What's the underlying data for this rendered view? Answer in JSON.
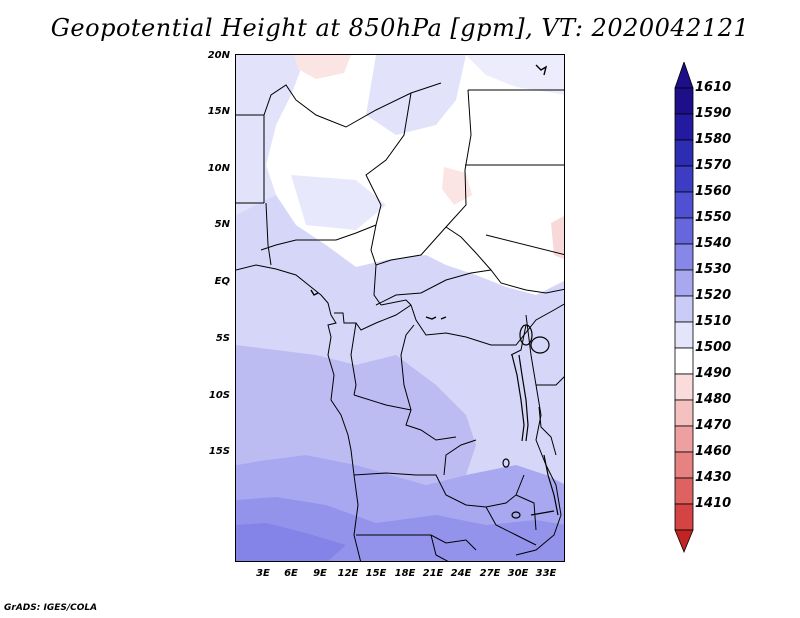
{
  "title": "Geopotential Height at 850hPa [gpm], VT: 2020042121",
  "credit": "GrADS: IGES/COLA",
  "map": {
    "latitude_labels": [
      "20N",
      "15N",
      "10N",
      "5N",
      "EQ",
      "5S",
      "10S",
      "15S"
    ],
    "longitude_labels": [
      "3E",
      "6E",
      "9E",
      "12E",
      "15E",
      "18E",
      "21E",
      "24E",
      "27E",
      "30E",
      "33E"
    ]
  },
  "legend": {
    "unit": "gpm",
    "levels": [
      {
        "label": "1610",
        "color": "#1e0e8a"
      },
      {
        "label": "1590",
        "color": "#241aa0"
      },
      {
        "label": "1580",
        "color": "#2d2db4"
      },
      {
        "label": "1570",
        "color": "#3d3dc4"
      },
      {
        "label": "1560",
        "color": "#5050d2"
      },
      {
        "label": "1550",
        "color": "#6767dd"
      },
      {
        "label": "1540",
        "color": "#8787e8"
      },
      {
        "label": "1530",
        "color": "#a8a8f0"
      },
      {
        "label": "1520",
        "color": "#cbcbf7"
      },
      {
        "label": "1510",
        "color": "#e4e4fb"
      },
      {
        "label": "1500",
        "color": "#ffffff"
      },
      {
        "label": "1490",
        "color": "#fbdcdc"
      },
      {
        "label": "1480",
        "color": "#f5c0c0"
      },
      {
        "label": "1470",
        "color": "#eea0a0"
      },
      {
        "label": "1460",
        "color": "#e68282"
      },
      {
        "label": "1430",
        "color": "#de6262"
      },
      {
        "label": "1410",
        "color": "#d44444"
      }
    ],
    "bottom_color": "#c22424"
  }
}
